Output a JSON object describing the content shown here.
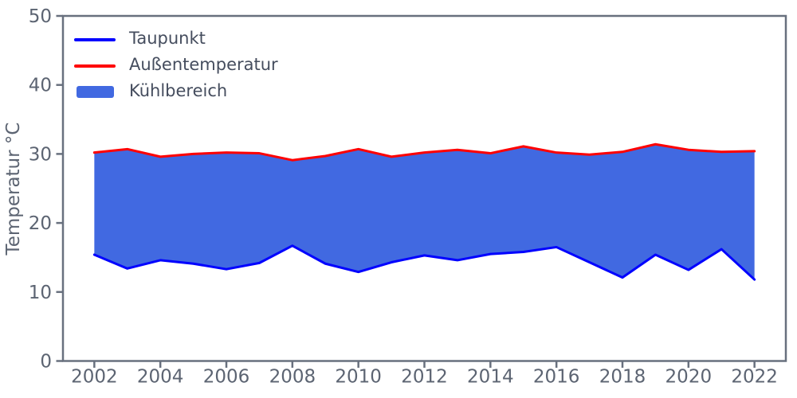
{
  "chart_data": {
    "type": "area",
    "title": "",
    "xlabel": "",
    "ylabel": "Temperatur °C",
    "x": [
      2002,
      2003,
      2004,
      2005,
      2006,
      2007,
      2008,
      2009,
      2010,
      2011,
      2012,
      2013,
      2014,
      2015,
      2016,
      2017,
      2018,
      2019,
      2020,
      2021,
      2022
    ],
    "series": [
      {
        "name": "Taupunkt",
        "kind": "line",
        "color": "#0000ff",
        "values": [
          15.4,
          13.4,
          14.6,
          14.1,
          13.3,
          14.2,
          16.7,
          14.1,
          12.9,
          14.3,
          15.3,
          14.6,
          15.5,
          15.8,
          16.5,
          14.3,
          12.1,
          15.4,
          13.2,
          16.2,
          11.8
        ]
      },
      {
        "name": "Außentemperatur",
        "kind": "line",
        "color": "#ff0000",
        "values": [
          30.2,
          30.7,
          29.6,
          30.0,
          30.2,
          30.1,
          29.1,
          29.7,
          30.7,
          29.6,
          30.2,
          30.6,
          30.1,
          31.1,
          30.2,
          29.9,
          30.3,
          31.4,
          30.6,
          30.3,
          30.4
        ]
      },
      {
        "name": "Kühlbereich",
        "kind": "fill-between",
        "color": "#4169e1",
        "between": [
          "Taupunkt",
          "Außentemperatur"
        ]
      }
    ],
    "ylim": [
      0,
      50
    ],
    "xlim": [
      2001.05,
      2022.95
    ],
    "yticks": [
      0,
      10,
      20,
      30,
      40,
      50
    ],
    "xticks": [
      2002,
      2004,
      2006,
      2008,
      2010,
      2012,
      2014,
      2016,
      2018,
      2020,
      2022
    ],
    "grid": false,
    "legend_position": "upper left"
  },
  "legend": {
    "items": [
      {
        "label": "Taupunkt",
        "swatch": "line",
        "color": "#0000ff"
      },
      {
        "label": "Außentemperatur",
        "swatch": "line",
        "color": "#ff0000"
      },
      {
        "label": "Kühlbereich",
        "swatch": "patch",
        "color": "#4169e1"
      }
    ]
  },
  "style": {
    "axis_color": "#68707e",
    "tick_label_color": "#5c6472",
    "legend_text_color": "#454d5e",
    "background": "#ffffff"
  }
}
